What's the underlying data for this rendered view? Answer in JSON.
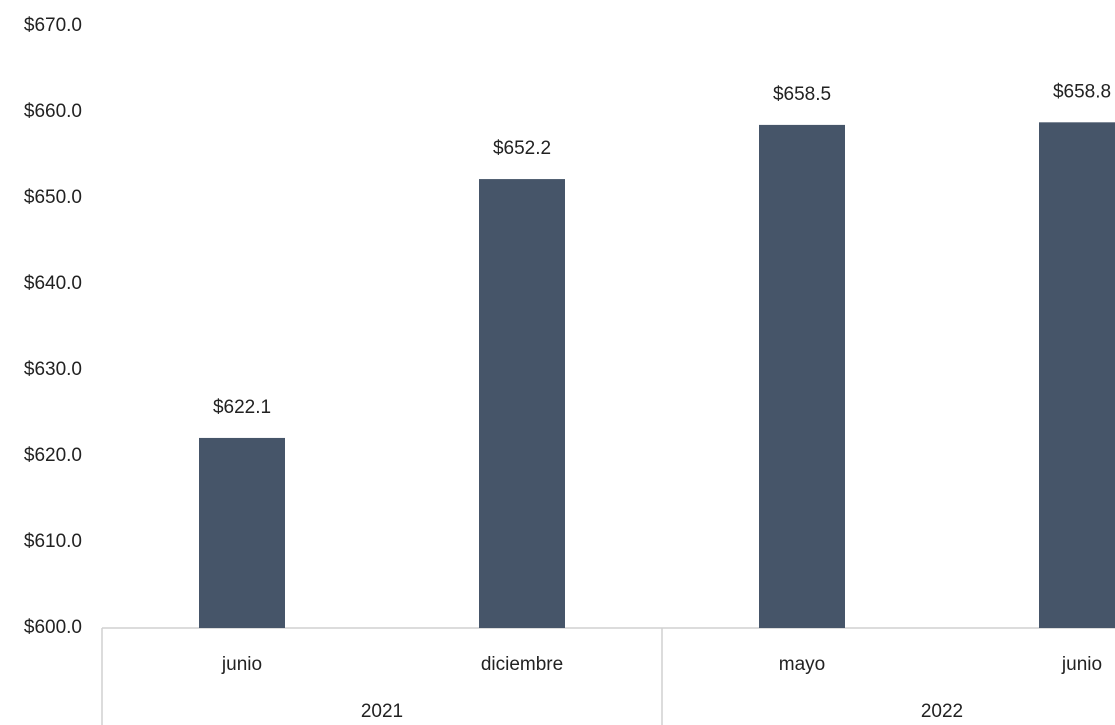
{
  "chart_data": {
    "type": "bar",
    "groups": [
      {
        "name": "2021",
        "categories": [
          "junio",
          "diciembre"
        ]
      },
      {
        "name": "2022",
        "categories": [
          "mayo",
          "junio"
        ]
      }
    ],
    "values": [
      622.1,
      652.2,
      658.5,
      658.8
    ],
    "value_labels": [
      "$622.1",
      "$652.2",
      "$658.5",
      "$658.8"
    ],
    "color": "#465569",
    "ylim": [
      600,
      670
    ],
    "yticks": [
      {
        "value": 600,
        "label": "$600.0"
      },
      {
        "value": 610,
        "label": "$610.0"
      },
      {
        "value": 620,
        "label": "$620.0"
      },
      {
        "value": 630,
        "label": "$630.0"
      },
      {
        "value": 640,
        "label": "$640.0"
      },
      {
        "value": 650,
        "label": "$650.0"
      },
      {
        "value": 660,
        "label": "$660.0"
      },
      {
        "value": 670,
        "label": "$670.0"
      }
    ],
    "grid": false
  }
}
